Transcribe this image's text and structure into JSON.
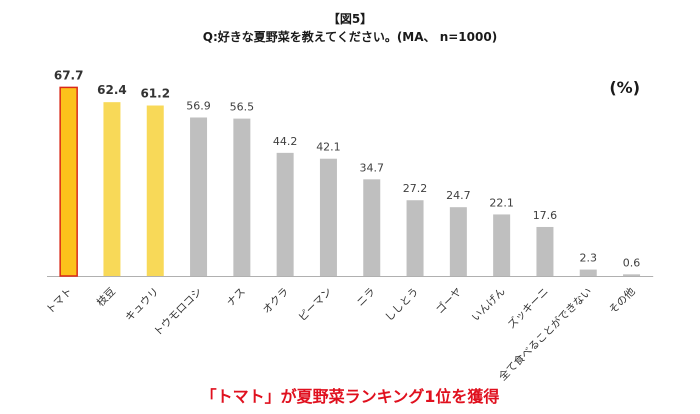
{
  "figure_label": "【図5】",
  "title": "Q:好きな夏野菜を教えてください。(MA、 n=1000)",
  "unit": "(%)",
  "headline": "「トマト」が夏野菜ランキング1位を獲得",
  "colors": {
    "top1_fill": "#fcc21b",
    "top1_stroke": "#d92818",
    "top_fill": "#f8d958",
    "other_fill": "#bfbfbf",
    "axis": "#b0b0b0",
    "headline": "#e0101e"
  },
  "chart_data": {
    "type": "bar",
    "title": "Q:好きな夏野菜を教えてください。(MA、 n=1000)",
    "xlabel": "",
    "ylabel": "",
    "unit": "(%)",
    "categories": [
      "トマト",
      "枝豆",
      "キュウリ",
      "トウモロコシ",
      "ナス",
      "オクラ",
      "ピーマン",
      "ニラ",
      "ししとう",
      "ゴーヤ",
      "いんげん",
      "ズッキーニ",
      "全て食べることができない",
      "その他"
    ],
    "values": [
      67.7,
      62.4,
      61.2,
      56.9,
      56.5,
      44.2,
      42.1,
      34.7,
      27.2,
      24.7,
      22.1,
      17.6,
      2.3,
      0.6
    ],
    "value_labels": [
      "67.7",
      "62.4",
      "61.2",
      "56.9",
      "56.5",
      "44.2",
      "42.1",
      "34.7",
      "27.2",
      "24.7",
      "22.1",
      "17.6",
      "2.3",
      "0.6"
    ],
    "highlight": [
      "top1",
      "top",
      "top",
      "other",
      "other",
      "other",
      "other",
      "other",
      "other",
      "other",
      "other",
      "other",
      "other",
      "other"
    ],
    "ylim": [
      0,
      70
    ],
    "grid": false,
    "legend": "none"
  }
}
